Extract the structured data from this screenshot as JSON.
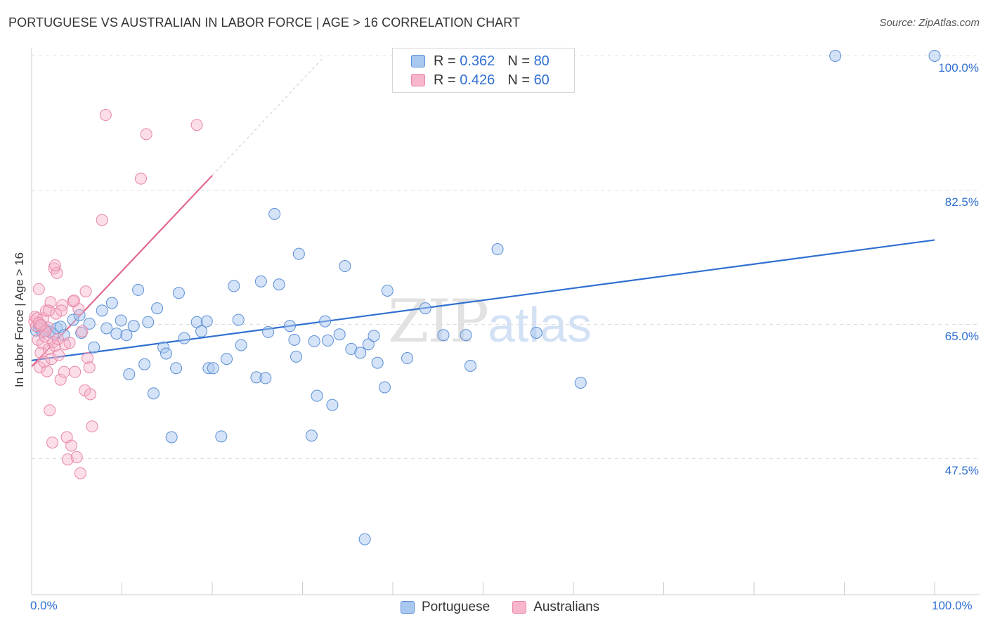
{
  "title": "PORTUGUESE VS AUSTRALIAN IN LABOR FORCE | AGE > 16 CORRELATION CHART",
  "source": "Source: ZipAtlas.com",
  "watermark": {
    "part1": "ZIP",
    "part2": "atlas"
  },
  "colors": {
    "portuguese_fill": "#a9c8f0",
    "portuguese_stroke": "#5b8fd6",
    "portuguese_line": "#2f6fd1",
    "australians_fill": "#f7b6cb",
    "australians_stroke": "#e887a6",
    "australians_line": "#e26a90",
    "grid": "#dddddd",
    "tick_text": "#2f6fd1"
  },
  "legend": {
    "rows": [
      {
        "r_label": "R =",
        "r_value": "0.362",
        "n_label": "N =",
        "n_value": "80"
      },
      {
        "r_label": "R =",
        "r_value": "0.426",
        "n_label": "N =",
        "n_value": "60"
      }
    ]
  },
  "bottom_legend": {
    "portuguese": "Portuguese",
    "australians": "Australians"
  },
  "axes": {
    "y_label": "In Labor Force | Age > 16",
    "y_ticks": [
      "100.0%",
      "82.5%",
      "65.0%",
      "47.5%"
    ],
    "x_ticks": [
      "0.0%",
      "100.0%"
    ]
  },
  "chart_data": {
    "type": "scatter",
    "title": "PORTUGUESE VS AUSTRALIAN IN LABOR FORCE | AGE > 16 CORRELATION CHART",
    "xlabel": "",
    "ylabel": "In Labor Force | Age > 16",
    "xlim": [
      0,
      100
    ],
    "ylim": [
      32.5,
      101.5
    ],
    "y_tick_values": [
      100.0,
      82.5,
      65.0,
      47.5
    ],
    "x_tick_values": [
      0,
      100
    ],
    "grid": true,
    "legend_position": "top-center",
    "series": [
      {
        "name": "Portuguese",
        "r": 0.362,
        "n": 80,
        "trend": {
          "x": [
            0,
            100
          ],
          "y": [
            60.3,
            76.0
          ],
          "extrapolated": false
        },
        "points": [
          [
            0.5,
            64.2
          ],
          [
            0.8,
            64.6
          ],
          [
            1.2,
            64.0
          ],
          [
            1.6,
            64.3
          ],
          [
            2.0,
            64.0
          ],
          [
            2.4,
            63.8
          ],
          [
            2.8,
            64.5
          ],
          [
            3.2,
            64.7
          ],
          [
            3.6,
            63.6
          ],
          [
            4.6,
            65.6
          ],
          [
            5.3,
            66.2
          ],
          [
            5.5,
            63.9
          ],
          [
            6.4,
            65.1
          ],
          [
            6.9,
            62.0
          ],
          [
            7.8,
            66.8
          ],
          [
            8.3,
            64.5
          ],
          [
            8.9,
            67.8
          ],
          [
            9.4,
            63.8
          ],
          [
            9.9,
            65.5
          ],
          [
            10.5,
            63.6
          ],
          [
            10.8,
            58.5
          ],
          [
            11.3,
            64.8
          ],
          [
            11.8,
            69.5
          ],
          [
            12.5,
            59.8
          ],
          [
            12.9,
            65.3
          ],
          [
            13.5,
            56.0
          ],
          [
            13.9,
            67.1
          ],
          [
            14.6,
            62.0
          ],
          [
            14.9,
            61.2
          ],
          [
            15.5,
            50.3
          ],
          [
            16.0,
            59.3
          ],
          [
            16.3,
            69.1
          ],
          [
            16.9,
            63.2
          ],
          [
            18.3,
            65.3
          ],
          [
            18.8,
            64.1
          ],
          [
            19.4,
            65.4
          ],
          [
            19.6,
            59.3
          ],
          [
            20.1,
            59.3
          ],
          [
            21.0,
            50.4
          ],
          [
            21.6,
            60.5
          ],
          [
            22.4,
            70.0
          ],
          [
            22.9,
            65.6
          ],
          [
            23.2,
            62.3
          ],
          [
            24.9,
            58.1
          ],
          [
            25.4,
            70.6
          ],
          [
            25.9,
            58.0
          ],
          [
            26.2,
            64.0
          ],
          [
            26.9,
            79.4
          ],
          [
            27.4,
            70.2
          ],
          [
            28.6,
            64.8
          ],
          [
            29.1,
            63.0
          ],
          [
            29.3,
            60.8
          ],
          [
            29.6,
            74.2
          ],
          [
            31.0,
            50.5
          ],
          [
            31.3,
            62.8
          ],
          [
            31.6,
            55.7
          ],
          [
            32.5,
            65.4
          ],
          [
            32.8,
            62.9
          ],
          [
            33.3,
            54.5
          ],
          [
            34.1,
            63.7
          ],
          [
            34.7,
            72.6
          ],
          [
            35.4,
            61.8
          ],
          [
            36.4,
            61.3
          ],
          [
            36.9,
            37.0
          ],
          [
            37.3,
            62.4
          ],
          [
            37.9,
            63.5
          ],
          [
            38.3,
            60.0
          ],
          [
            39.1,
            56.8
          ],
          [
            39.4,
            69.4
          ],
          [
            41.6,
            60.6
          ],
          [
            43.6,
            67.1
          ],
          [
            45.6,
            63.6
          ],
          [
            48.1,
            63.6
          ],
          [
            48.6,
            59.6
          ],
          [
            51.6,
            74.8
          ],
          [
            55.9,
            63.9
          ],
          [
            60.8,
            57.4
          ],
          [
            89.0,
            100.0
          ],
          [
            100.0,
            100.0
          ],
          [
            0.9,
            64.9
          ]
        ]
      },
      {
        "name": "Australians",
        "r": 0.426,
        "n": 60,
        "trend": {
          "x": [
            0,
            20
          ],
          "y": [
            59.5,
            84.4
          ],
          "dashed_extension_to": [
            32.4,
            99.9
          ]
        },
        "points": [
          [
            0.3,
            65.4
          ],
          [
            0.4,
            66.0
          ],
          [
            0.5,
            64.8
          ],
          [
            0.6,
            65.8
          ],
          [
            0.7,
            63.0
          ],
          [
            0.8,
            69.6
          ],
          [
            0.9,
            59.4
          ],
          [
            1.0,
            61.3
          ],
          [
            1.1,
            64.8
          ],
          [
            1.2,
            62.5
          ],
          [
            1.3,
            65.8
          ],
          [
            1.4,
            60.1
          ],
          [
            1.5,
            63.4
          ],
          [
            1.6,
            66.8
          ],
          [
            1.7,
            58.9
          ],
          [
            1.8,
            64.6
          ],
          [
            1.9,
            61.8
          ],
          [
            2.0,
            53.8
          ],
          [
            2.1,
            67.9
          ],
          [
            2.2,
            60.5
          ],
          [
            2.3,
            49.6
          ],
          [
            2.4,
            62.7
          ],
          [
            2.5,
            72.3
          ],
          [
            2.6,
            62.2
          ],
          [
            2.7,
            66.4
          ],
          [
            2.8,
            71.7
          ],
          [
            3.0,
            61.0
          ],
          [
            3.2,
            57.8
          ],
          [
            3.4,
            67.5
          ],
          [
            3.6,
            58.8
          ],
          [
            3.7,
            62.4
          ],
          [
            3.9,
            50.3
          ],
          [
            4.0,
            47.4
          ],
          [
            4.2,
            62.6
          ],
          [
            4.4,
            49.2
          ],
          [
            4.6,
            68.0
          ],
          [
            4.8,
            58.8
          ],
          [
            5.0,
            47.7
          ],
          [
            5.2,
            67.0
          ],
          [
            5.4,
            45.6
          ],
          [
            5.6,
            64.1
          ],
          [
            5.9,
            56.4
          ],
          [
            6.0,
            69.3
          ],
          [
            6.2,
            60.6
          ],
          [
            6.4,
            59.4
          ],
          [
            6.5,
            55.9
          ],
          [
            6.7,
            51.7
          ],
          [
            7.8,
            78.6
          ],
          [
            8.2,
            92.3
          ],
          [
            12.1,
            84.0
          ],
          [
            12.7,
            89.8
          ],
          [
            18.3,
            91.0
          ],
          [
            2.6,
            72.7
          ],
          [
            1.9,
            66.8
          ],
          [
            0.8,
            65.2
          ],
          [
            3.3,
            66.8
          ],
          [
            4.7,
            68.1
          ],
          [
            2.9,
            63.1
          ],
          [
            1.5,
            64.1
          ],
          [
            1.0,
            64.9
          ]
        ]
      }
    ]
  }
}
